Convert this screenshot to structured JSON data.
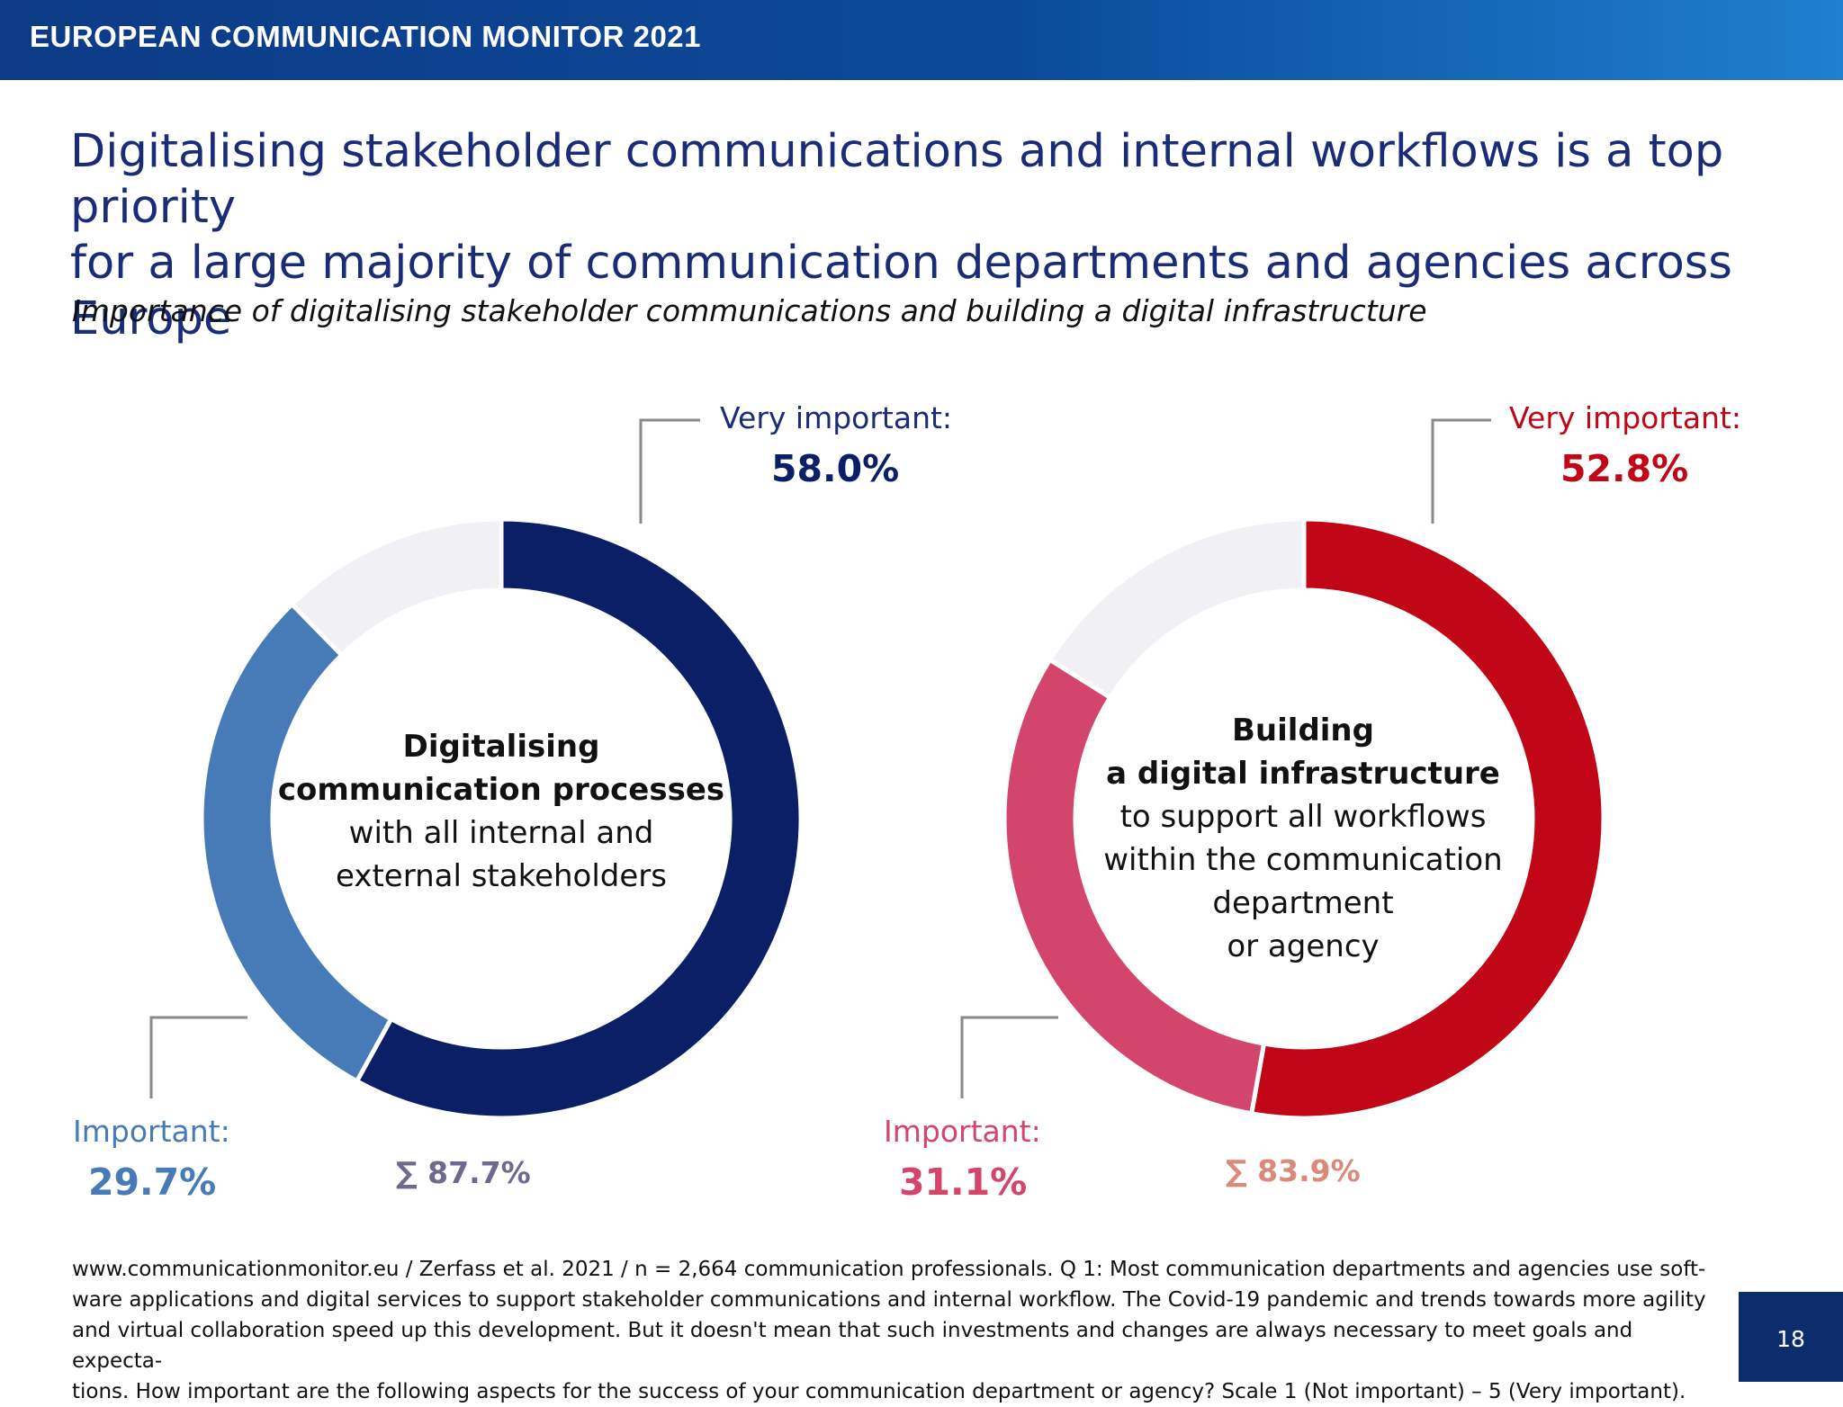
{
  "header": {
    "title": "EUROPEAN COMMUNICATION MONITOR 2021"
  },
  "headline": {
    "line1": "Digitalising stakeholder communications and internal workflows is a top priority",
    "line2": "for a large majority of communication departments and agencies across Europe"
  },
  "subtitle": "Importance of digitalising stakeholder communications and building a digital infrastructure",
  "chart_data": [
    {
      "type": "pie",
      "center_label": {
        "bold1": "Digitalising",
        "bold2": "communication processes",
        "line3": "with all internal and",
        "line4": "external stakeholders"
      },
      "slices": [
        {
          "label": "Very important:",
          "value_text": "58.0%",
          "value": 58.0,
          "color": "#0a1f66"
        },
        {
          "label": "Important:",
          "value_text": "29.7%",
          "value": 29.7,
          "color": "#477bb7"
        },
        {
          "label": "",
          "value": 12.3,
          "color": "#f1f0f4"
        }
      ],
      "sum_text": "∑ 87.7%",
      "sum_color": "#6d6a8f"
    },
    {
      "type": "pie",
      "center_label": {
        "bold1": "Building",
        "bold2": "a digital infrastructure",
        "line3": "to support all workflows",
        "line4": "within the communication",
        "line5": "department",
        "line6": "or agency"
      },
      "slices": [
        {
          "label": "Very important:",
          "value_text": "52.8%",
          "value": 52.8,
          "color": "#c00617"
        },
        {
          "label": "Important:",
          "value_text": "31.1%",
          "value": 31.1,
          "color": "#d4456b"
        },
        {
          "label": "",
          "value": 16.1,
          "color": "#f1f0f4"
        }
      ],
      "sum_text": "∑ 83.9%",
      "sum_color": "#d98a7a"
    }
  ],
  "footer": {
    "line1": "www.communicationmonitor.eu / Zerfass et al. 2021 / n = 2,664 communication professionals. Q 1: Most communication departments and agencies use soft-",
    "line2": "ware applications and digital services to support stakeholder communications and internal workflow. The Covid-19 pandemic and trends towards more agility",
    "line3": "and virtual collaboration speed up this development. But it doesn't mean that such investments and changes are always necessary to meet goals and expecta-",
    "line4": "tions. How important are the following aspects for the success of your communication department or agency? Scale 1 (Not important) – 5 (Very important)."
  },
  "page_number": "18"
}
